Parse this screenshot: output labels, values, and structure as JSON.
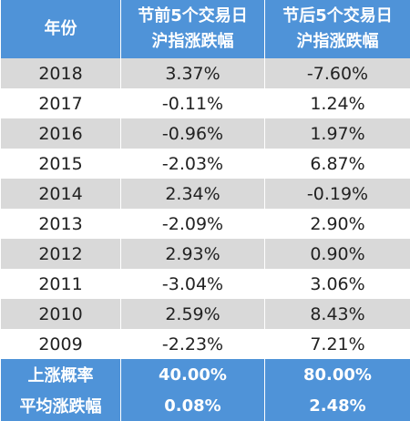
{
  "table": {
    "header": [
      [
        "年份"
      ],
      [
        "节前5个交易日",
        "沪指涨跌幅"
      ],
      [
        "节后5个交易日",
        "沪指涨跌幅"
      ]
    ],
    "rows": [
      [
        "2018",
        "3.37%",
        "-7.60%"
      ],
      [
        "2017",
        "-0.11%",
        "1.24%"
      ],
      [
        "2016",
        "-0.96%",
        "1.97%"
      ],
      [
        "2015",
        "-2.03%",
        "6.87%"
      ],
      [
        "2014",
        "2.34%",
        "-0.19%"
      ],
      [
        "2013",
        "-2.09%",
        "2.90%"
      ],
      [
        "2012",
        "2.93%",
        "0.90%"
      ],
      [
        "2011",
        "-3.04%",
        "3.06%"
      ],
      [
        "2010",
        "2.59%",
        "8.43%"
      ],
      [
        "2009",
        "-2.23%",
        "7.21%"
      ]
    ],
    "footer": [
      [
        "上涨概率",
        "40.00%",
        "80.00%"
      ],
      [
        "平均涨跌幅",
        "0.08%",
        "2.48%"
      ]
    ]
  }
}
